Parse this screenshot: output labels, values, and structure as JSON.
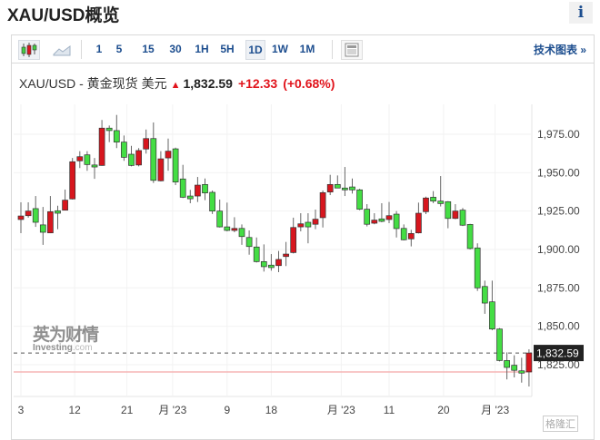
{
  "page": {
    "title": "XAU/USD概览",
    "info_icon": "i"
  },
  "toolbar": {
    "chart_types": [
      {
        "icon": "candlestick-icon",
        "active": true
      },
      {
        "icon": "area-chart-icon",
        "active": false
      }
    ],
    "intervals": [
      {
        "label": "1",
        "active": false
      },
      {
        "label": "5",
        "active": false
      },
      {
        "label": "15",
        "active": false
      },
      {
        "label": "30",
        "active": false
      },
      {
        "label": "1H",
        "active": false
      },
      {
        "label": "5H",
        "active": false
      },
      {
        "label": "1D",
        "active": true
      },
      {
        "label": "1W",
        "active": false
      },
      {
        "label": "1M",
        "active": false
      }
    ],
    "news_icon": "newspaper-icon",
    "technical_chart_label": "技术图表 »"
  },
  "quote": {
    "name": "XAU/USD - 黄金现货 美元",
    "direction": "up",
    "price": "1,832.59",
    "change": "+12.33",
    "change_pct": "(+0.68%)"
  },
  "watermark": {
    "cn": "英为财情",
    "en_bold": "Investing",
    "en_light": ".com"
  },
  "corner_badge": "格隆汇",
  "colors": {
    "up": "#d7161e",
    "down": "#44dd44",
    "accent": "#1d4e8f",
    "change": "#e1141c"
  },
  "chart_data": {
    "type": "candlestick",
    "y_ticks": [
      "1,975.00",
      "1,950.00",
      "1,925.00",
      "1,900.00",
      "1,875.00",
      "1,850.00",
      "1,825.00"
    ],
    "y_tick_values": [
      1975,
      1950,
      1925,
      1900,
      1875,
      1850,
      1825
    ],
    "ylim": [
      1805,
      2002
    ],
    "x_labels": [
      {
        "label": "3",
        "index": 1
      },
      {
        "label": "12",
        "index": 8.3
      },
      {
        "label": "21",
        "index": 15.4
      },
      {
        "label": "月 '23",
        "index": 21.6
      },
      {
        "label": "9",
        "index": 29
      },
      {
        "label": "18",
        "index": 35
      },
      {
        "label": "月 '23",
        "index": 44.5
      },
      {
        "label": "11",
        "index": 51
      },
      {
        "label": "20",
        "index": 58.4
      },
      {
        "label": "月 '23",
        "index": 65.4
      }
    ],
    "last_price": 1832.59,
    "last_price_label": "1,832.59",
    "previous_close": 1820.26,
    "grid": true,
    "ohlc": [
      [
        1919.5,
        1930.7,
        1910.6,
        1921.8
      ],
      [
        1922,
        1930.7,
        1920.7,
        1925
      ],
      [
        1926.6,
        1934.8,
        1914.7,
        1917.7
      ],
      [
        1916,
        1927.7,
        1903,
        1911.2
      ],
      [
        1910.8,
        1934.8,
        1910.6,
        1924.6
      ],
      [
        1925.2,
        1928.5,
        1913.2,
        1923.6
      ],
      [
        1925.6,
        1939,
        1925.4,
        1932.1
      ],
      [
        1932.9,
        1959.6,
        1932.5,
        1957.1
      ],
      [
        1957.7,
        1964,
        1953,
        1960.4
      ],
      [
        1961.6,
        1964,
        1951.2,
        1955.3
      ],
      [
        1955,
        1959.6,
        1946,
        1953.7
      ],
      [
        1954.7,
        1984.3,
        1954.5,
        1979
      ],
      [
        1979,
        1980.7,
        1969.9,
        1977.4
      ],
      [
        1977.4,
        1987.6,
        1966,
        1969.9
      ],
      [
        1969.9,
        1974.2,
        1957.7,
        1960
      ],
      [
        1962,
        1967.5,
        1954.1,
        1954.7
      ],
      [
        1955,
        1966,
        1954.1,
        1964.4
      ],
      [
        1965.4,
        1978.1,
        1962.4,
        1972.2
      ],
      [
        1972.2,
        1982.7,
        1943.3,
        1945
      ],
      [
        1944.7,
        1964,
        1944.3,
        1959
      ],
      [
        1959.6,
        1972.2,
        1951.2,
        1964
      ],
      [
        1965.5,
        1966.3,
        1941.9,
        1943.9
      ],
      [
        1945.9,
        1955.1,
        1933.5,
        1934
      ],
      [
        1934.8,
        1938.8,
        1930.1,
        1933
      ],
      [
        1934.8,
        1947.2,
        1930.9,
        1941.9
      ],
      [
        1942.3,
        1946.2,
        1932.1,
        1936.8
      ],
      [
        1937.2,
        1938.4,
        1923.1,
        1925
      ],
      [
        1925,
        1932.5,
        1914.3,
        1914.7
      ],
      [
        1914.7,
        1930.5,
        1911.8,
        1912.4
      ],
      [
        1912.4,
        1921,
        1911.2,
        1913.7
      ],
      [
        1913.7,
        1916.3,
        1903,
        1908.4
      ],
      [
        1907.8,
        1912.4,
        1896.6,
        1901.9
      ],
      [
        1901.6,
        1907.8,
        1891.5,
        1892.1
      ],
      [
        1892.1,
        1903.3,
        1885.6,
        1888.8
      ],
      [
        1889.8,
        1897,
        1886.2,
        1888.2
      ],
      [
        1889.5,
        1899,
        1885.2,
        1893.5
      ],
      [
        1895.4,
        1904.9,
        1889.2,
        1897
      ],
      [
        1898,
        1920.7,
        1897.4,
        1914.3
      ],
      [
        1914.7,
        1923.6,
        1911.8,
        1916.7
      ],
      [
        1917.7,
        1923.6,
        1904,
        1914.7
      ],
      [
        1916.4,
        1926,
        1913.2,
        1919.7
      ],
      [
        1920.7,
        1938.4,
        1914.3,
        1937
      ],
      [
        1937.4,
        1948.6,
        1935.4,
        1942.3
      ],
      [
        1942.3,
        1948.2,
        1940,
        1940
      ],
      [
        1940,
        1953.7,
        1934.8,
        1938.8
      ],
      [
        1940.7,
        1946.2,
        1936.4,
        1938.8
      ],
      [
        1938.8,
        1939.5,
        1925.6,
        1926.2
      ],
      [
        1926.2,
        1929.5,
        1915,
        1916.4
      ],
      [
        1917.1,
        1923.6,
        1916.4,
        1919.1
      ],
      [
        1919.9,
        1930.1,
        1917.7,
        1918.3
      ],
      [
        1919.5,
        1930.9,
        1917.1,
        1922
      ],
      [
        1923,
        1925,
        1907.8,
        1913.6
      ],
      [
        1913.7,
        1916.3,
        1905.9,
        1906.3
      ],
      [
        1906.9,
        1912.8,
        1902,
        1910.4
      ],
      [
        1910.8,
        1930.5,
        1910.4,
        1923.6
      ],
      [
        1924.6,
        1934.4,
        1923,
        1933.5
      ],
      [
        1934,
        1938,
        1930.1,
        1931.5
      ],
      [
        1931.5,
        1947.8,
        1928,
        1929.9
      ],
      [
        1931.1,
        1931.5,
        1913.8,
        1920.2
      ],
      [
        1920.2,
        1929.5,
        1919.7,
        1925
      ],
      [
        1925.6,
        1927,
        1915.3,
        1915.8
      ],
      [
        1916.3,
        1916.7,
        1900,
        1900.6
      ],
      [
        1901,
        1904,
        1873,
        1875
      ],
      [
        1875.9,
        1879.7,
        1858.1,
        1865.1
      ],
      [
        1865.9,
        1879.7,
        1847.4,
        1848.2
      ],
      [
        1848.2,
        1848.8,
        1827.1,
        1827.7
      ],
      [
        1827.7,
        1833,
        1815.4,
        1823.2
      ],
      [
        1824.6,
        1831.1,
        1816.7,
        1821.3
      ],
      [
        1821,
        1829.5,
        1813.3,
        1819.5
      ],
      [
        1820.3,
        1835,
        1810.8,
        1832.59
      ]
    ]
  }
}
